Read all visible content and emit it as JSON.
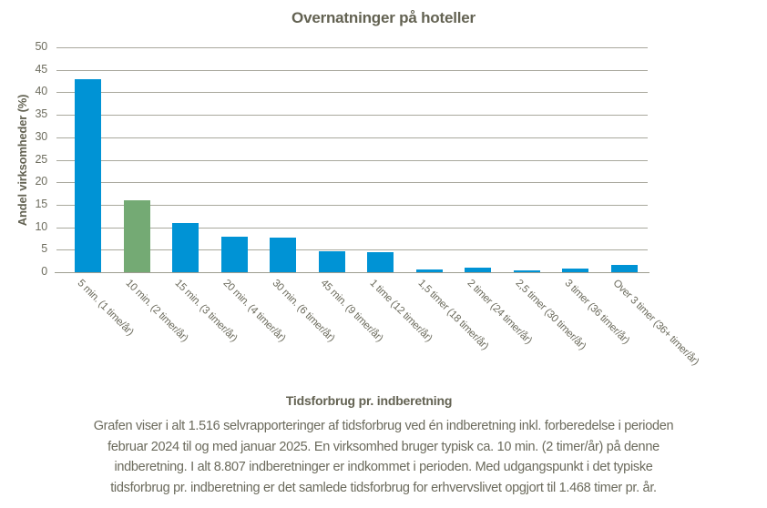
{
  "title": "Overnatninger på hoteller",
  "y_axis": {
    "label": "Andel virksomheder (%)"
  },
  "x_axis": {
    "title": "Tidsforbrug pr. indberetning"
  },
  "chart_data": {
    "type": "bar",
    "title": "Overnatninger på hoteller",
    "xlabel": "Tidsforbrug pr. indberetning",
    "ylabel": "Andel virksomheder (%)",
    "ylim": [
      0,
      50
    ],
    "ytick_step": 5,
    "grid": true,
    "legend": "none",
    "categories": [
      "5 min. (1 time/år)",
      "10 min. (2 timer/år)",
      "15 min. (3 timer/år)",
      "20 min. (4 timer/år)",
      "30 min. (6 timer/år)",
      "45 min. (9 timer/år)",
      "1 time (12 timer/år)",
      "1,5 timer (18 timer/år)",
      "2 timer (24 timer/år)",
      "2,5 timer (30 timer/år)",
      "3 timer (36 timer/år)",
      "Over 3 timer (36+ timer/år)"
    ],
    "values": [
      43,
      16,
      11,
      7.9,
      7.7,
      4.6,
      4.5,
      0.7,
      1.0,
      0.5,
      0.8,
      1.7
    ],
    "highlight_index": 1,
    "colors": {
      "bar_default": "#0093d5",
      "bar_highlight": "#74aa74",
      "gridline": "#a9a89d",
      "axis_line": "#9e9d90",
      "text": "#636252"
    }
  },
  "footer": {
    "lines": [
      "Grafen viser i alt 1.516 selvrapporteringer af tidsforbrug ved én indberetning inkl. forberedelse i perioden",
      "februar 2024 til og med januar 2025. En virksomhed bruger typisk ca. 10 min. (2 timer/år) på denne",
      "indberetning. I alt 8.807 indberetninger er indkommet i perioden. Med udgangspunkt i det typiske",
      "tidsforbrug pr. indberetning er det samlede tidsforbrug for erhvervslivet opgjort til 1.468 timer pr. år."
    ]
  }
}
